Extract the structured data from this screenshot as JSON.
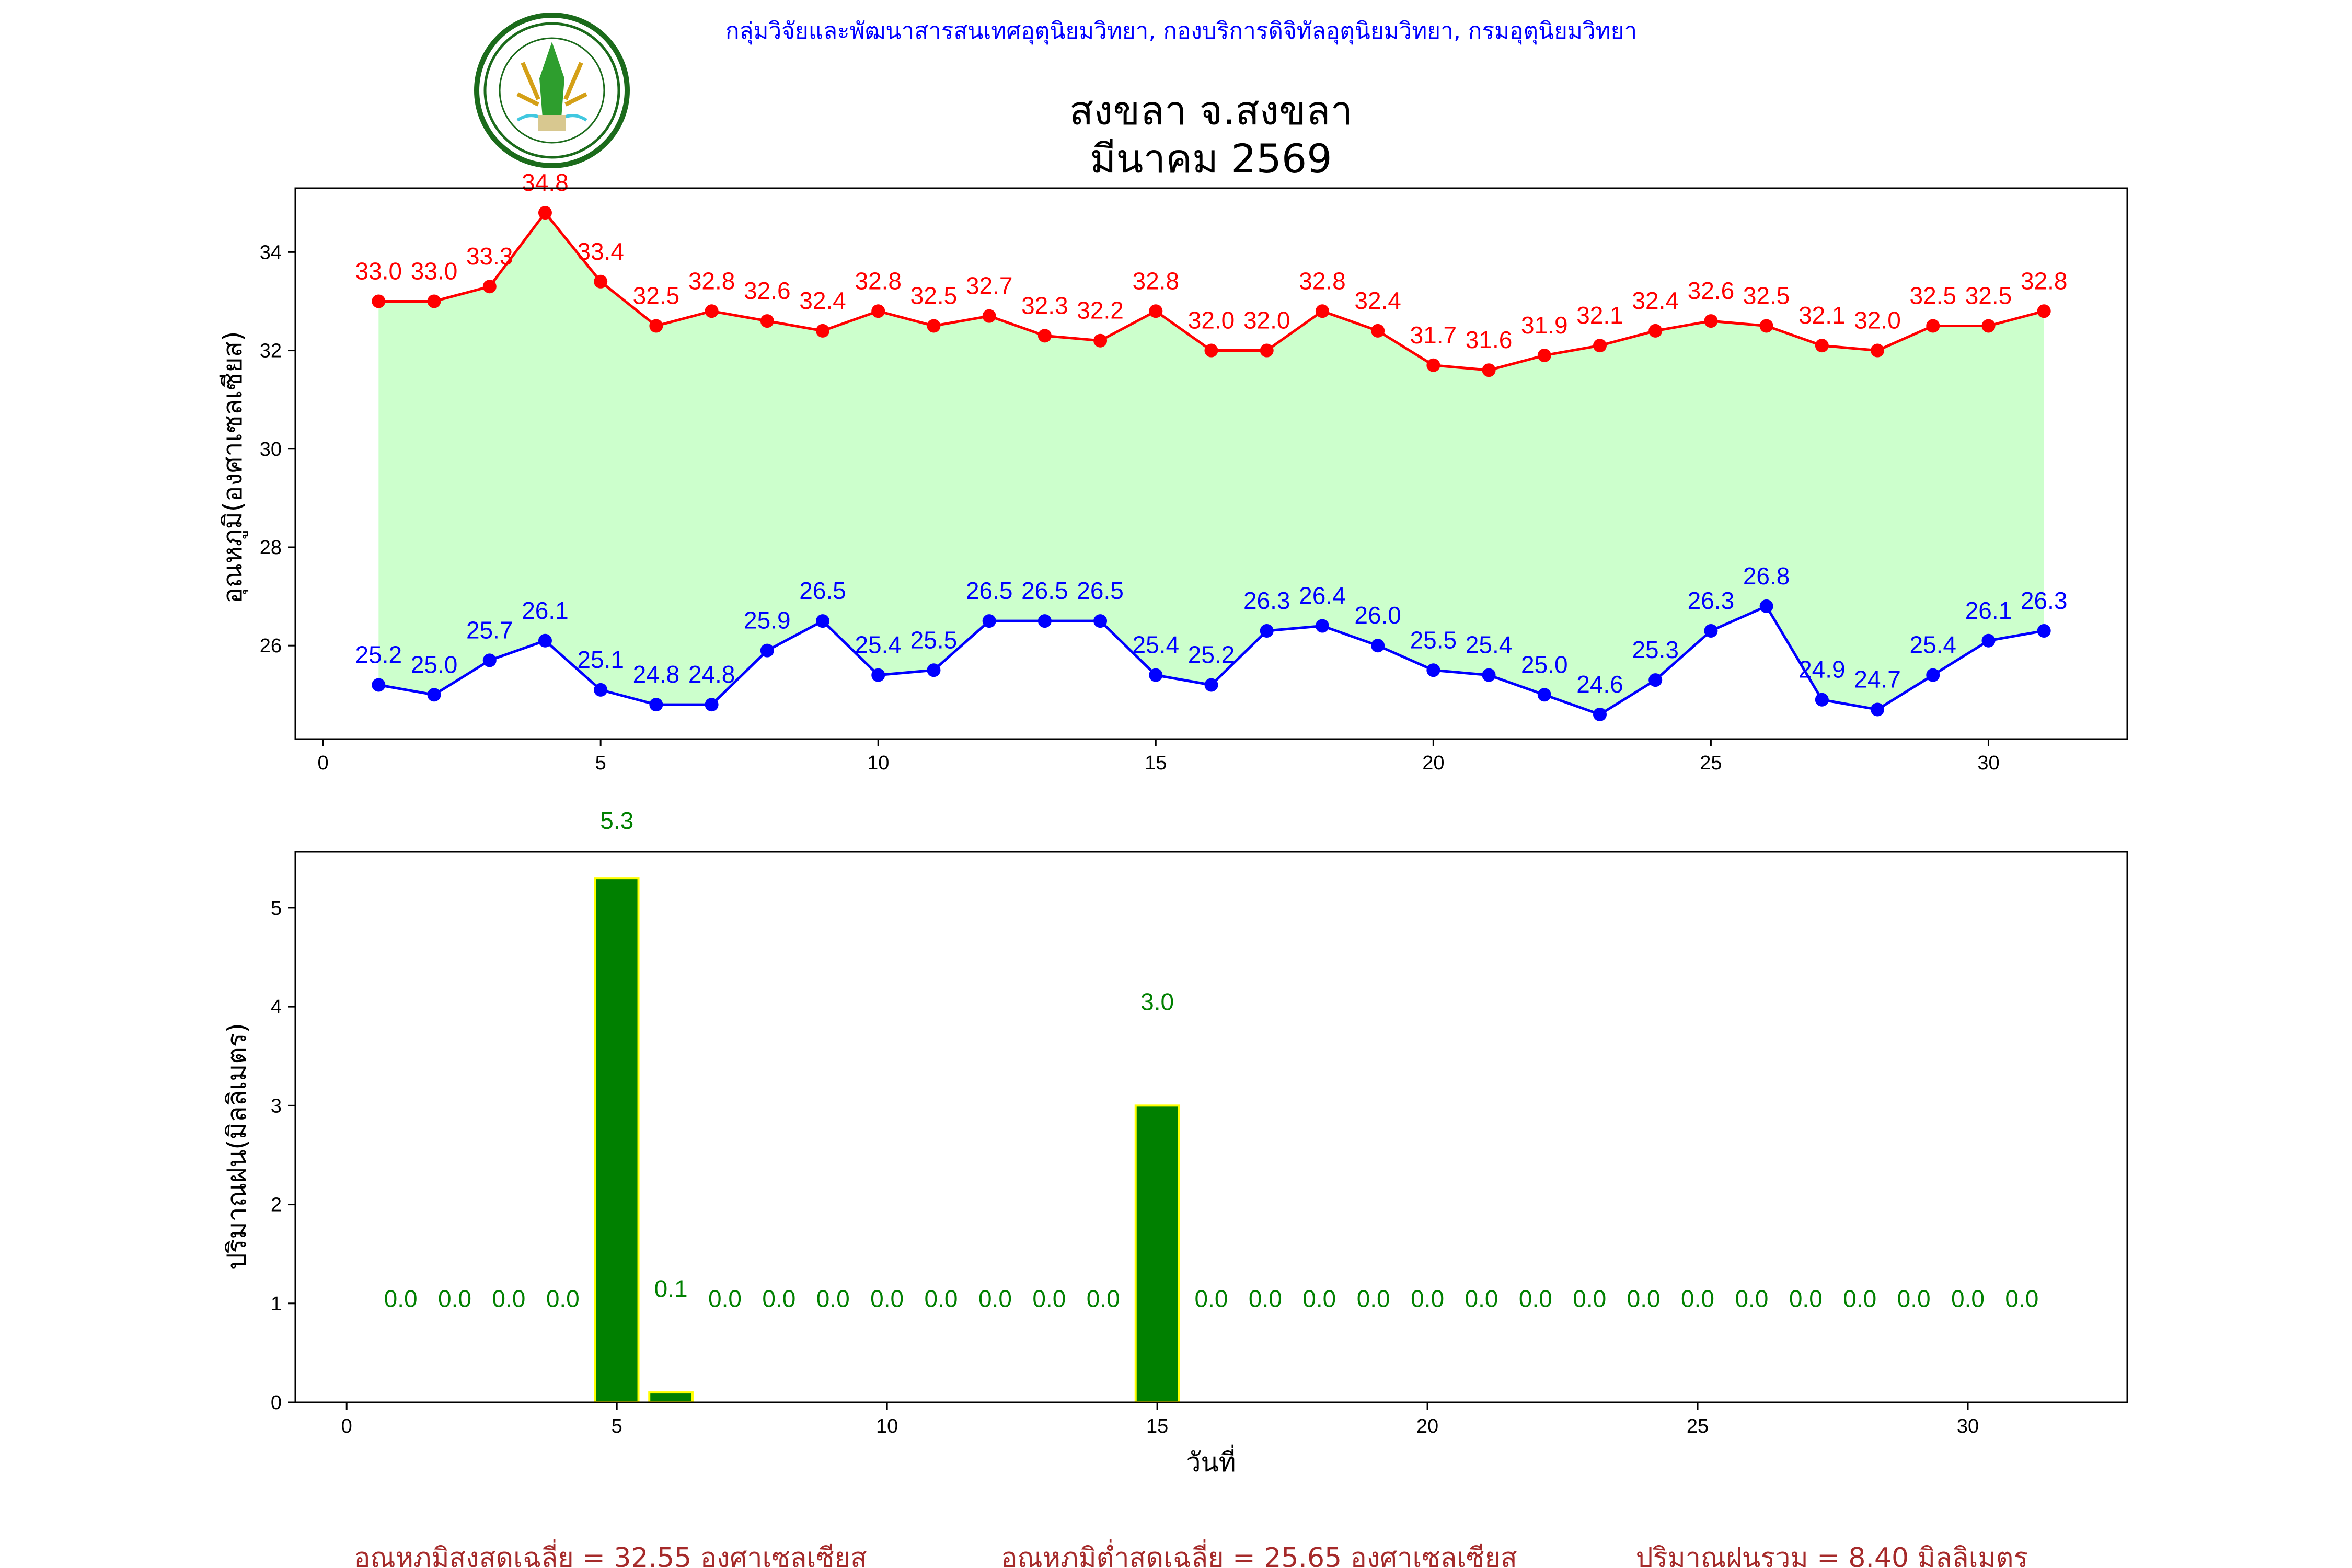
{
  "header": {
    "organization": "กลุ่มวิจัยและพัฒนาสารสนเทศอุตุนิยมวิทยา, กองบริการดิจิทัลอุตุนิยมวิทยา, กรมอุตุนิยมวิทยา",
    "station_title": "สงขลา จ.สงขลา",
    "period_title": "มีนาคม 2569",
    "logo_text": "กรมอุตุนิยมวิทยา METEOROLOGICAL DEPARTMENT"
  },
  "colors": {
    "max_temp": "#ff0000",
    "min_temp": "#0000ff",
    "fill": "#ccffcc",
    "rain_bar": "#008000",
    "rain_edge": "#ffff00",
    "subtitle": "#0000ff",
    "footer": "#a52a2a"
  },
  "chart_data": [
    {
      "type": "line",
      "title": "สงขลา จ.สงขลา มีนาคม 2569",
      "xlabel": "",
      "ylabel": "อุณหภูมิ(องศาเซลเซียส)",
      "xlim": [
        -0.5,
        32.5
      ],
      "ylim": [
        24.1,
        35.3
      ],
      "xticks": [
        0,
        5,
        10,
        15,
        20,
        25,
        30
      ],
      "yticks": [
        26,
        28,
        30,
        32,
        34
      ],
      "x": [
        1,
        2,
        3,
        4,
        5,
        6,
        7,
        8,
        9,
        10,
        11,
        12,
        13,
        14,
        15,
        16,
        17,
        18,
        19,
        20,
        21,
        22,
        23,
        24,
        25,
        26,
        27,
        28,
        29,
        30,
        31
      ],
      "series": [
        {
          "name": "max",
          "values": [
            33.0,
            33.0,
            33.3,
            34.8,
            33.4,
            32.5,
            32.8,
            32.6,
            32.4,
            32.8,
            32.5,
            32.7,
            32.3,
            32.2,
            32.8,
            32.0,
            32.0,
            32.8,
            32.4,
            31.7,
            31.6,
            31.9,
            32.1,
            32.4,
            32.6,
            32.5,
            32.1,
            32.0,
            32.5,
            32.5,
            32.8
          ]
        },
        {
          "name": "min",
          "values": [
            25.2,
            25.0,
            25.7,
            26.1,
            25.1,
            24.8,
            24.8,
            25.9,
            26.5,
            25.4,
            25.5,
            26.5,
            26.5,
            26.5,
            25.4,
            25.2,
            26.3,
            26.4,
            26.0,
            25.5,
            25.4,
            25.0,
            24.6,
            25.3,
            26.3,
            26.8,
            24.9,
            24.7,
            25.4,
            26.1,
            26.3
          ]
        }
      ],
      "fill_between": [
        "min",
        "max"
      ],
      "grid": false
    },
    {
      "type": "bar",
      "xlabel": "วันที่",
      "ylabel": "ปริมาณฝน(มิลลิเมตร)",
      "xlim": [
        -0.95,
        32.95
      ],
      "ylim": [
        0,
        5.565
      ],
      "xticks": [
        0,
        5,
        10,
        15,
        20,
        25,
        30
      ],
      "yticks": [
        0,
        1,
        2,
        3,
        4,
        5
      ],
      "categories": [
        1,
        2,
        3,
        4,
        5,
        6,
        7,
        8,
        9,
        10,
        11,
        12,
        13,
        14,
        15,
        16,
        17,
        18,
        19,
        20,
        21,
        22,
        23,
        24,
        25,
        26,
        27,
        28,
        29,
        30,
        31
      ],
      "values": [
        0.0,
        0.0,
        0.0,
        0.0,
        5.3,
        0.1,
        0.0,
        0.0,
        0.0,
        0.0,
        0.0,
        0.0,
        0.0,
        0.0,
        3.0,
        0.0,
        0.0,
        0.0,
        0.0,
        0.0,
        0.0,
        0.0,
        0.0,
        0.0,
        0.0,
        0.0,
        0.0,
        0.0,
        0.0,
        0.0,
        0.0
      ],
      "grid": false
    }
  ],
  "footer": {
    "avg_max": "อุณหภูมิสูงสุดเฉลี่ย = 32.55 องศาเซลเซียส",
    "avg_min": "อุณหภูมิต่ำสุดเฉลี่ย = 25.65 องศาเซลเซียส",
    "total_rain": "ปริมาณฝนรวม = 8.40 มิลลิเมตร"
  }
}
